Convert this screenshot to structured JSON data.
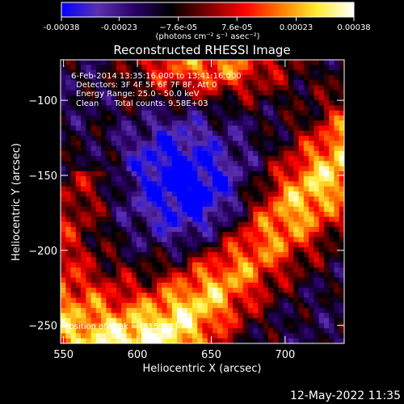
{
  "chart_data": {
    "type": "heatmap",
    "title": "Reconstructed RHESSI Image",
    "xlabel": "Heliocentric X (arcsec)",
    "ylabel": "Heliocentric Y (arcsec)",
    "xlim": [
      548,
      740
    ],
    "ylim": [
      -262,
      -73
    ],
    "x_ticks": [
      550,
      600,
      650,
      700
    ],
    "y_ticks": [
      -100,
      -150,
      -200,
      -250
    ],
    "colorbar": {
      "unit_label": "(photons cm⁻² s⁻¹ asec⁻²)",
      "min": -0.00038,
      "max": 0.00038,
      "tick_values": [
        -0.00038,
        -0.00023,
        -7.6e-05,
        7.6e-05,
        0.00023,
        0.00038
      ],
      "tick_labels": [
        "-0.00038",
        "-0.00023",
        "−7.6e-05",
        "7.6e-05",
        "0.00023",
        "0.00038"
      ],
      "colormap": [
        "#0000ff",
        "#5a2fb0",
        "#2a0066",
        "#000000",
        "#7a0000",
        "#ff0000",
        "#ff7a00",
        "#ffee33",
        "#ffffff"
      ]
    },
    "annotations": {
      "time_range": "6-Feb-2014 13:35:16.000 to 13:41:16.000",
      "detectors": "Detectors: 3F 4F 5F 6F 7F 8F, Att 0",
      "energy": "Energy Range: 25.0 - 50.0 keV",
      "clean": "Clean      Total counts: 9.58E+03",
      "peak": "Position of Peak = [615,-91]"
    },
    "peak_position": [
      615,
      -91
    ],
    "grid": false
  },
  "footer": {
    "timestamp": "12-May-2022 11:35"
  }
}
